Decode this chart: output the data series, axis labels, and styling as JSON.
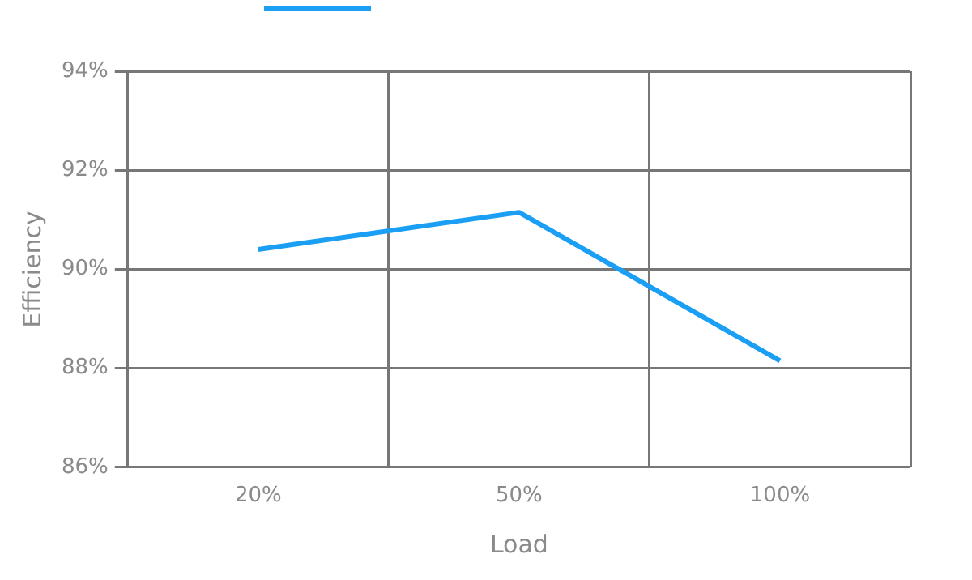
{
  "chart_data": {
    "type": "line",
    "xlabel": "Load",
    "ylabel": "Efficiency",
    "categories": [
      "20%",
      "50%",
      "100%"
    ],
    "series": [
      {
        "color": "#1a9ff5",
        "values": [
          90.4,
          91.15,
          88.15
        ]
      }
    ],
    "ylim": [
      86,
      94
    ],
    "yticks": [
      {
        "value": 86,
        "label": "86%"
      },
      {
        "value": 88,
        "label": "88%"
      },
      {
        "value": 90,
        "label": "90%"
      },
      {
        "value": 92,
        "label": "92%"
      },
      {
        "value": 94,
        "label": "94%"
      }
    ],
    "grid": true,
    "marker": "none",
    "line_style": "solid"
  }
}
